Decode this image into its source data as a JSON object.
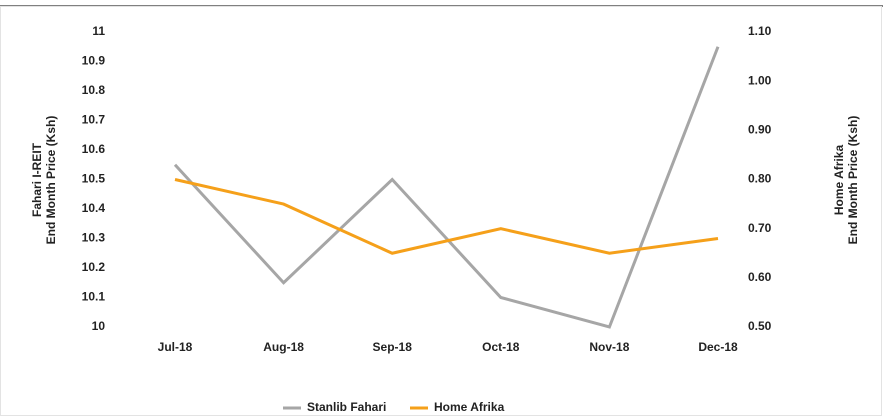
{
  "chart_data": {
    "type": "line",
    "categories": [
      "Jul-18",
      "Aug-18",
      "Sep-18",
      "Oct-18",
      "Nov-18",
      "Dec-18"
    ],
    "series": [
      {
        "name": "Stanlib Fahari",
        "color": "#a6a6a6",
        "values": [
          10.55,
          10.15,
          10.5,
          10.1,
          10.0,
          10.95
        ]
      },
      {
        "name": "Home Afrika",
        "color": "#f5a01a",
        "axis": "y2",
        "values": [
          0.8,
          0.75,
          0.65,
          0.7,
          0.65,
          0.68
        ]
      }
    ],
    "ylabel": [
      "Fahari I-REIT",
      "End Month Price (Ksh)"
    ],
    "y2label": [
      "Home Afrika",
      "End Month Price (Ksh)"
    ],
    "ylim": [
      10,
      11
    ],
    "yticks": [
      10,
      10.1,
      10.2,
      10.3,
      10.4,
      10.5,
      10.6,
      10.7,
      10.8,
      10.9,
      11
    ],
    "y2lim": [
      0.5,
      1.1
    ],
    "y2ticks": [
      {
        "value": 0.5,
        "label": "0.50"
      },
      {
        "value": 0.6,
        "label": "0.60"
      },
      {
        "value": 0.7,
        "label": "0.70"
      },
      {
        "value": 0.8,
        "label": "0.80"
      },
      {
        "value": 0.9,
        "label": "0.90"
      },
      {
        "value": 1.0,
        "label": "1.00"
      },
      {
        "value": 1.1,
        "label": "1.10"
      }
    ],
    "grid": false,
    "legend": "bottom"
  }
}
